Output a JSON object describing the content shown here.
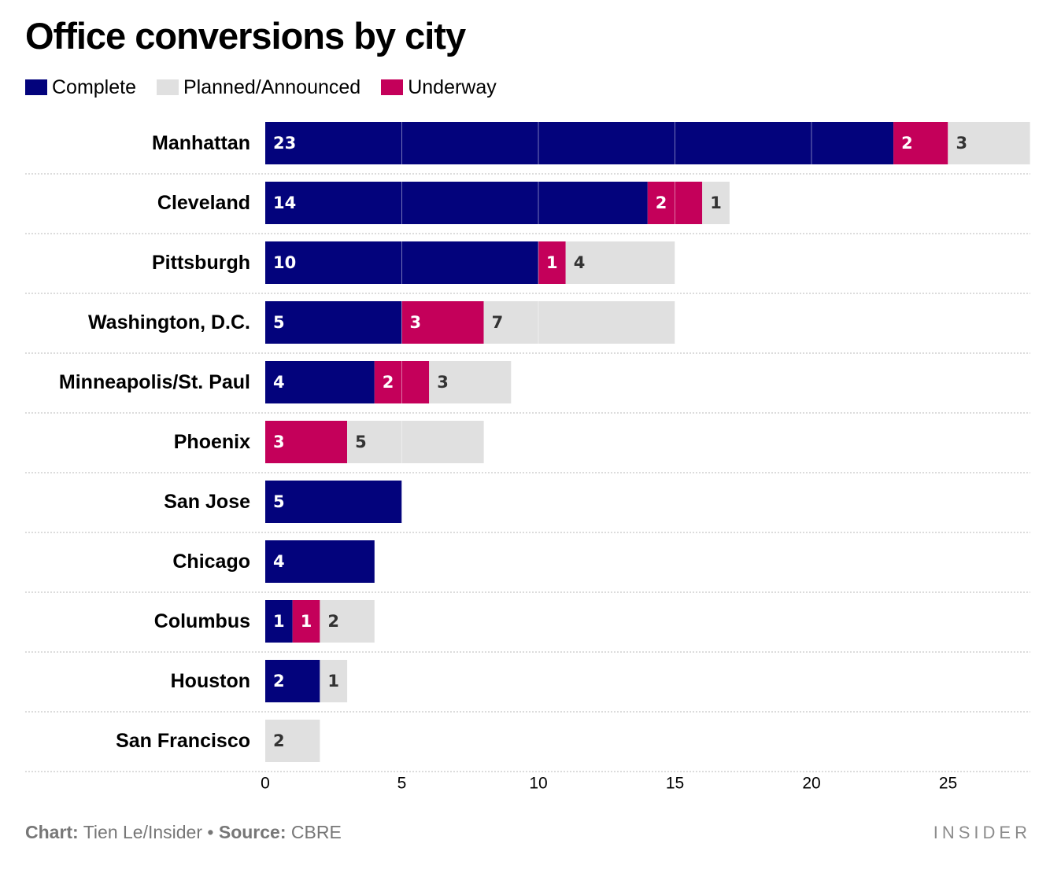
{
  "footer": {
    "chart_label": "Chart:",
    "chart_value": "Tien Le/Insider",
    "bullet": "•",
    "source_label": "Source:",
    "source_value": "CBRE"
  },
  "brand": {
    "logo_text": "INSIDER"
  },
  "colors": {
    "complete": "#03037c",
    "underway": "#c4005a",
    "planned": "#e0e0e0",
    "label_light": "#ffffff",
    "label_dark": "#333333",
    "row_separator": "#c8c8c8"
  },
  "chart_data": {
    "type": "bar",
    "orientation": "horizontal",
    "stacked": true,
    "title": "Office conversions by city",
    "legend": [
      {
        "key": "complete",
        "label": "Complete"
      },
      {
        "key": "planned",
        "label": "Planned/Announced"
      },
      {
        "key": "underway",
        "label": "Underway"
      }
    ],
    "legend_position": "top-left",
    "categories": [
      "Manhattan",
      "Cleveland",
      "Pittsburgh",
      "Washington, D.C.",
      "Minneapolis/St. Paul",
      "Phoenix",
      "San Jose",
      "Chicago",
      "Columbus",
      "Houston",
      "San Francisco"
    ],
    "stack_order": [
      "complete",
      "underway",
      "planned"
    ],
    "series": [
      {
        "key": "complete",
        "name": "Complete",
        "values": [
          23,
          14,
          10,
          5,
          4,
          0,
          5,
          4,
          1,
          2,
          0
        ]
      },
      {
        "key": "underway",
        "name": "Underway",
        "values": [
          2,
          2,
          1,
          3,
          2,
          3,
          0,
          0,
          1,
          0,
          0
        ]
      },
      {
        "key": "planned",
        "name": "Planned/Announced",
        "values": [
          3,
          1,
          4,
          7,
          3,
          5,
          0,
          0,
          2,
          1,
          2
        ]
      }
    ],
    "xlim": [
      0,
      28
    ],
    "xticks": [
      0,
      5,
      10,
      15,
      20,
      25
    ],
    "grid": true,
    "xlabel": "",
    "ylabel": ""
  }
}
